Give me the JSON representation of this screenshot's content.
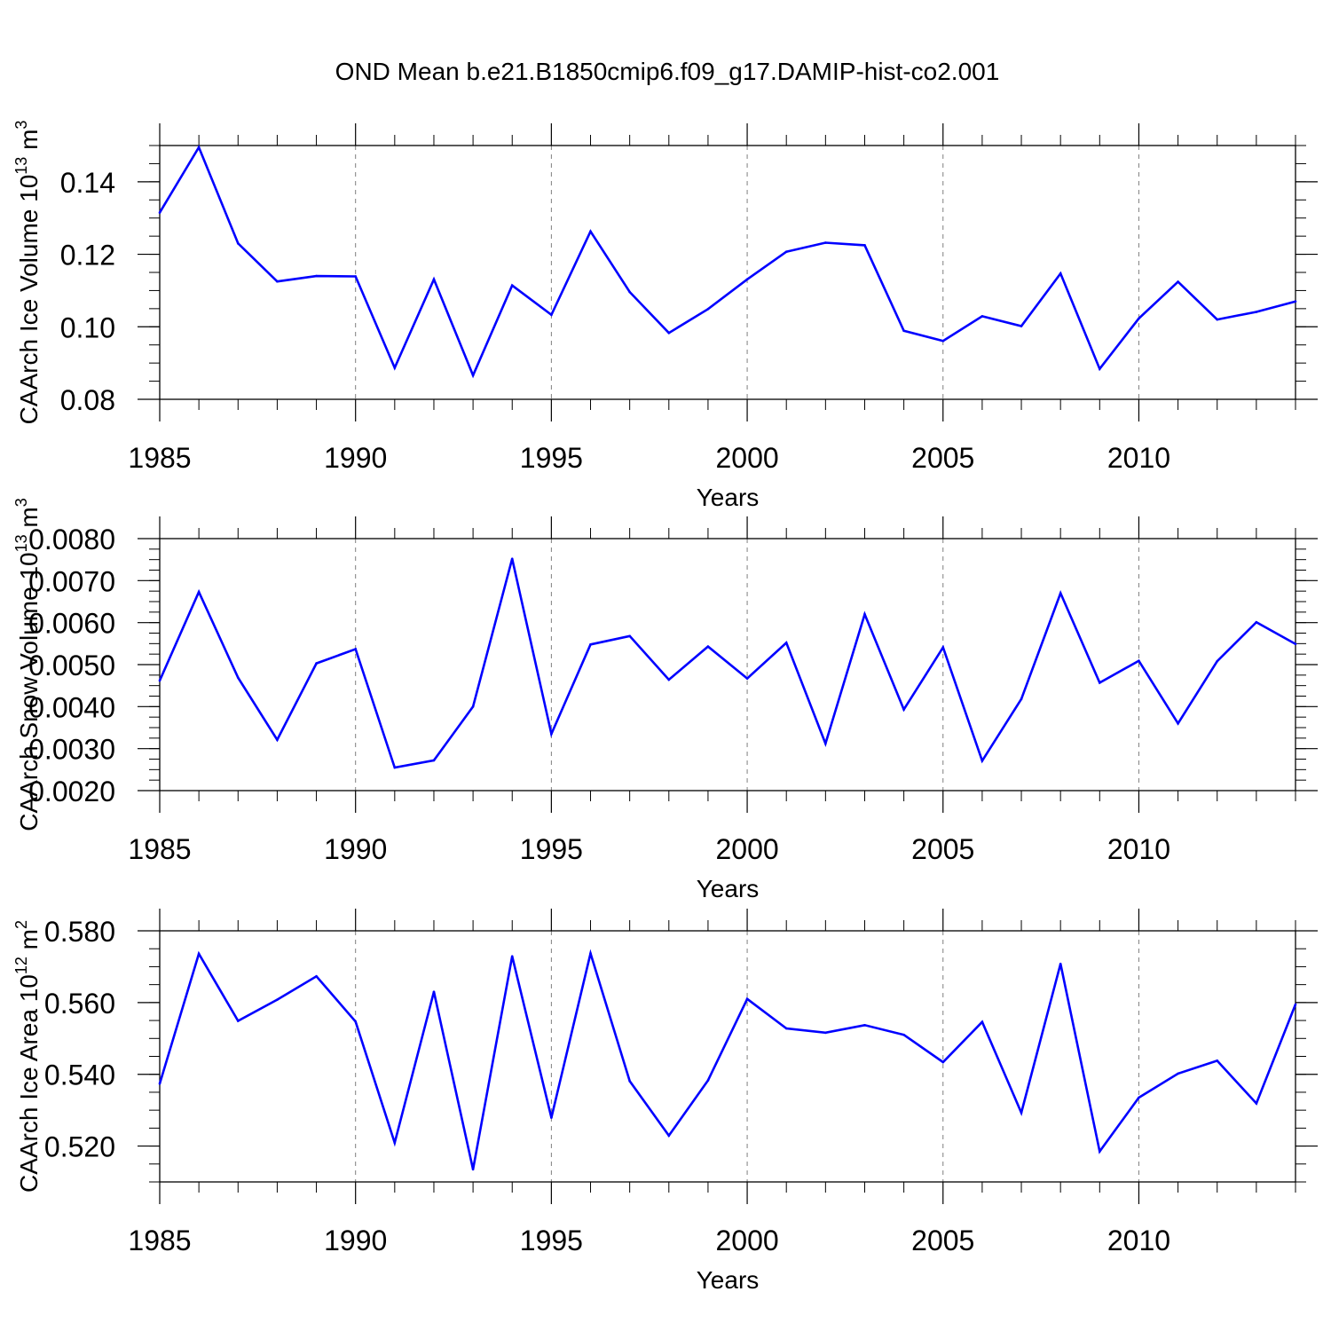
{
  "chart_data": {
    "title": "OND Mean b.e21.B1850cmip6.f09_g17.DAMIP-hist-co2.001",
    "years": [
      1985,
      1986,
      1987,
      1988,
      1989,
      1990,
      1991,
      1992,
      1993,
      1994,
      1995,
      1996,
      1997,
      1998,
      1999,
      2000,
      2001,
      2002,
      2003,
      2004,
      2005,
      2006,
      2007,
      2008,
      2009,
      2010,
      2011,
      2012,
      2013,
      2014
    ],
    "xlim": [
      1985,
      2014
    ],
    "xticks": [
      1985,
      1990,
      1995,
      2000,
      2005,
      2010
    ],
    "xtick_labels": [
      "1985",
      "1990",
      "1995",
      "2000",
      "2005",
      "2010"
    ],
    "line_color": "#0000ff",
    "panels": [
      {
        "type": "line",
        "xlabel": "Years",
        "ylabel_main": "CAArch Ice Volume 10",
        "ylabel_exp": "13",
        "ylabel_unit": " m",
        "ylabel_unit_exp": "3",
        "ylim": [
          0.08,
          0.15
        ],
        "yticks": [
          0.08,
          0.1,
          0.12,
          0.14
        ],
        "ytick_labels": [
          "0.08",
          "0.10",
          "0.12",
          "0.14"
        ],
        "values": [
          0.1315,
          0.1495,
          0.123,
          0.1125,
          0.114,
          0.1139,
          0.0887,
          0.1131,
          0.0866,
          0.1114,
          0.1033,
          0.1263,
          0.1096,
          0.0983,
          0.1049,
          0.1131,
          0.1207,
          0.1232,
          0.1225,
          0.0989,
          0.0961,
          0.1029,
          0.1002,
          0.1147,
          0.0884,
          0.1023,
          0.1124,
          0.102,
          0.1041,
          0.107
        ]
      },
      {
        "type": "line",
        "xlabel": "Years",
        "ylabel_main": "CAArch Snow Volume 10",
        "ylabel_exp": "13",
        "ylabel_unit": " m",
        "ylabel_unit_exp": "3",
        "ylim": [
          0.002,
          0.008
        ],
        "yticks": [
          0.002,
          0.003,
          0.004,
          0.005,
          0.006,
          0.007,
          0.008
        ],
        "ytick_labels": [
          "0.0020",
          "0.0030",
          "0.0040",
          "0.0050",
          "0.0060",
          "0.0070",
          "0.0080"
        ],
        "values": [
          0.00462,
          0.00673,
          0.00469,
          0.00321,
          0.00503,
          0.00537,
          0.00255,
          0.00272,
          0.004,
          0.00752,
          0.00335,
          0.00548,
          0.00568,
          0.00464,
          0.00543,
          0.00467,
          0.00552,
          0.00312,
          0.0062,
          0.00393,
          0.00541,
          0.00271,
          0.00418,
          0.0067,
          0.00457,
          0.00509,
          0.0036,
          0.00508,
          0.00601,
          0.00549
        ]
      },
      {
        "type": "line",
        "xlabel": "Years",
        "ylabel_main": "CAArch Ice Area 10",
        "ylabel_exp": "12",
        "ylabel_unit": " m",
        "ylabel_unit_exp": "2",
        "ylim": [
          0.51,
          0.58
        ],
        "yticks": [
          0.52,
          0.54,
          0.56,
          0.58
        ],
        "ytick_labels": [
          "0.520",
          "0.540",
          "0.560",
          "0.580"
        ],
        "values": [
          0.5374,
          0.5736,
          0.5549,
          0.5608,
          0.5673,
          0.5547,
          0.5209,
          0.563,
          0.5135,
          0.5729,
          0.5279,
          0.5737,
          0.5381,
          0.5229,
          0.5383,
          0.561,
          0.5528,
          0.5516,
          0.5537,
          0.551,
          0.5434,
          0.5546,
          0.5293,
          0.5708,
          0.5185,
          0.5335,
          0.5402,
          0.5438,
          0.5319,
          0.5595
        ]
      }
    ]
  }
}
